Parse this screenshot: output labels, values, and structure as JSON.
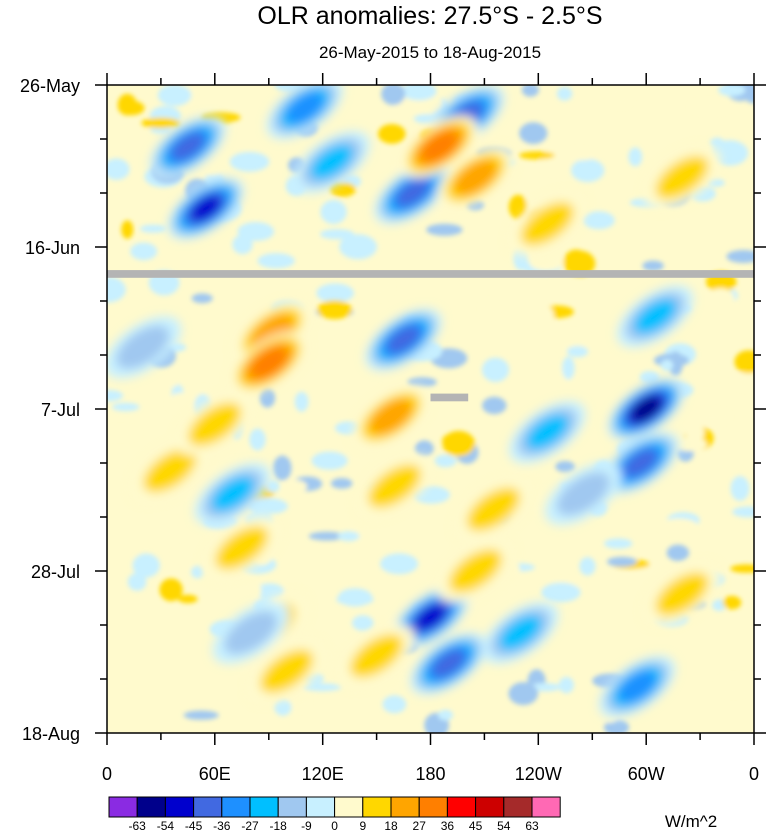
{
  "chart_data": {
    "type": "heatmap",
    "title": "OLR anomalies: 27.5°S - 2.5°S",
    "subtitle": "26-May-2015 to 18-Aug-2015",
    "x_axis": {
      "ticks": [
        "0",
        "60E",
        "120E",
        "180",
        "120W",
        "60W",
        "0"
      ],
      "tick_values_deg_east": [
        0,
        60,
        120,
        180,
        240,
        300,
        360
      ],
      "range_deg_east": [
        0,
        360
      ]
    },
    "y_axis": {
      "ticks": [
        "26-May",
        "16-Jun",
        "7-Jul",
        "28-Jul",
        "18-Aug"
      ],
      "range": [
        "26-May-2015",
        "18-Aug-2015"
      ],
      "reversed": true
    },
    "colorbar": {
      "units": "W/m^2",
      "levels": [
        -63,
        -54,
        -45,
        -36,
        -27,
        -18,
        -9,
        0,
        9,
        18,
        27,
        36,
        45,
        54,
        63
      ],
      "colors": [
        "#8a2be2",
        "#00008b",
        "#0000cd",
        "#4169e1",
        "#1e90ff",
        "#00bfff",
        "#a0c8f0",
        "#c8f0ff",
        "#fffacd",
        "#ffd700",
        "#ffa500",
        "#ff7f00",
        "#ff0000",
        "#cd0000",
        "#a52a2a",
        "#ff69b4"
      ]
    },
    "missing_color": "#b4b4b4",
    "missing": [
      {
        "from_date": "19-Jun-2015",
        "to_date": "20-Jun-2015",
        "lon_range": [
          0,
          360
        ]
      },
      {
        "from_date": "5-Jul-2015",
        "to_date": "6-Jul-2015",
        "lon_range": [
          180,
          201
        ]
      }
    ],
    "anomaly_features": [
      {
        "lon": 45,
        "date": "3-Jun-2015",
        "value": -45
      },
      {
        "lon": 55,
        "date": "11-Jun-2015",
        "value": -54
      },
      {
        "lon": 110,
        "date": "29-May-2015",
        "value": -36
      },
      {
        "lon": 200,
        "date": "30-May-2015",
        "value": -45
      },
      {
        "lon": 170,
        "date": "9-Jun-2015",
        "value": -45
      },
      {
        "lon": 185,
        "date": "3-Jun-2015",
        "value": 36
      },
      {
        "lon": 205,
        "date": "7-Jun-2015",
        "value": 27
      },
      {
        "lon": 92,
        "date": "27-Jun-2015",
        "value": 27
      },
      {
        "lon": 90,
        "date": "1-Jul-2015",
        "value": 36
      },
      {
        "lon": 158,
        "date": "8-Jul-2015",
        "value": 27
      },
      {
        "lon": 160,
        "date": "17-Jul-2015",
        "value": 18
      },
      {
        "lon": 165,
        "date": "28-Jun-2015",
        "value": -45
      },
      {
        "lon": 300,
        "date": "7-Jul-2015",
        "value": -63
      },
      {
        "lon": 297,
        "date": "14-Jul-2015",
        "value": -45
      },
      {
        "lon": 180,
        "date": "3-Aug-2015",
        "value": -54
      },
      {
        "lon": 190,
        "date": "9-Aug-2015",
        "value": -45
      },
      {
        "lon": 295,
        "date": "12-Aug-2015",
        "value": -36
      },
      {
        "lon": 305,
        "date": "25-Jun-2015",
        "value": -27
      },
      {
        "lon": 320,
        "date": "7-Jun-2015",
        "value": 18
      },
      {
        "lon": 35,
        "date": "15-Jul-2015",
        "value": 18
      },
      {
        "lon": 75,
        "date": "25-Jul-2015",
        "value": 18
      },
      {
        "lon": 90,
        "date": "4-Aug-2015",
        "value": 18
      },
      {
        "lon": 100,
        "date": "10-Aug-2015",
        "value": 18
      },
      {
        "lon": 150,
        "date": "8-Aug-2015",
        "value": 18
      },
      {
        "lon": 215,
        "date": "20-Jul-2015",
        "value": 18
      },
      {
        "lon": 205,
        "date": "28-Jul-2015",
        "value": 18
      },
      {
        "lon": 245,
        "date": "13-Jun-2015",
        "value": 18
      },
      {
        "lon": 320,
        "date": "31-Jul-2015",
        "value": 18
      },
      {
        "lon": 60,
        "date": "9-Jul-2015",
        "value": 18
      },
      {
        "lon": 70,
        "date": "18-Jul-2015",
        "value": -27
      },
      {
        "lon": 80,
        "date": "5-Aug-2015",
        "value": -18
      },
      {
        "lon": 245,
        "date": "10-Jul-2015",
        "value": -27
      },
      {
        "lon": 265,
        "date": "18-Jul-2015",
        "value": -18
      },
      {
        "lon": 230,
        "date": "5-Aug-2015",
        "value": -27
      },
      {
        "lon": 125,
        "date": "5-Jun-2015",
        "value": -27
      },
      {
        "lon": 20,
        "date": "29-Jun-2015",
        "value": -18
      }
    ]
  }
}
